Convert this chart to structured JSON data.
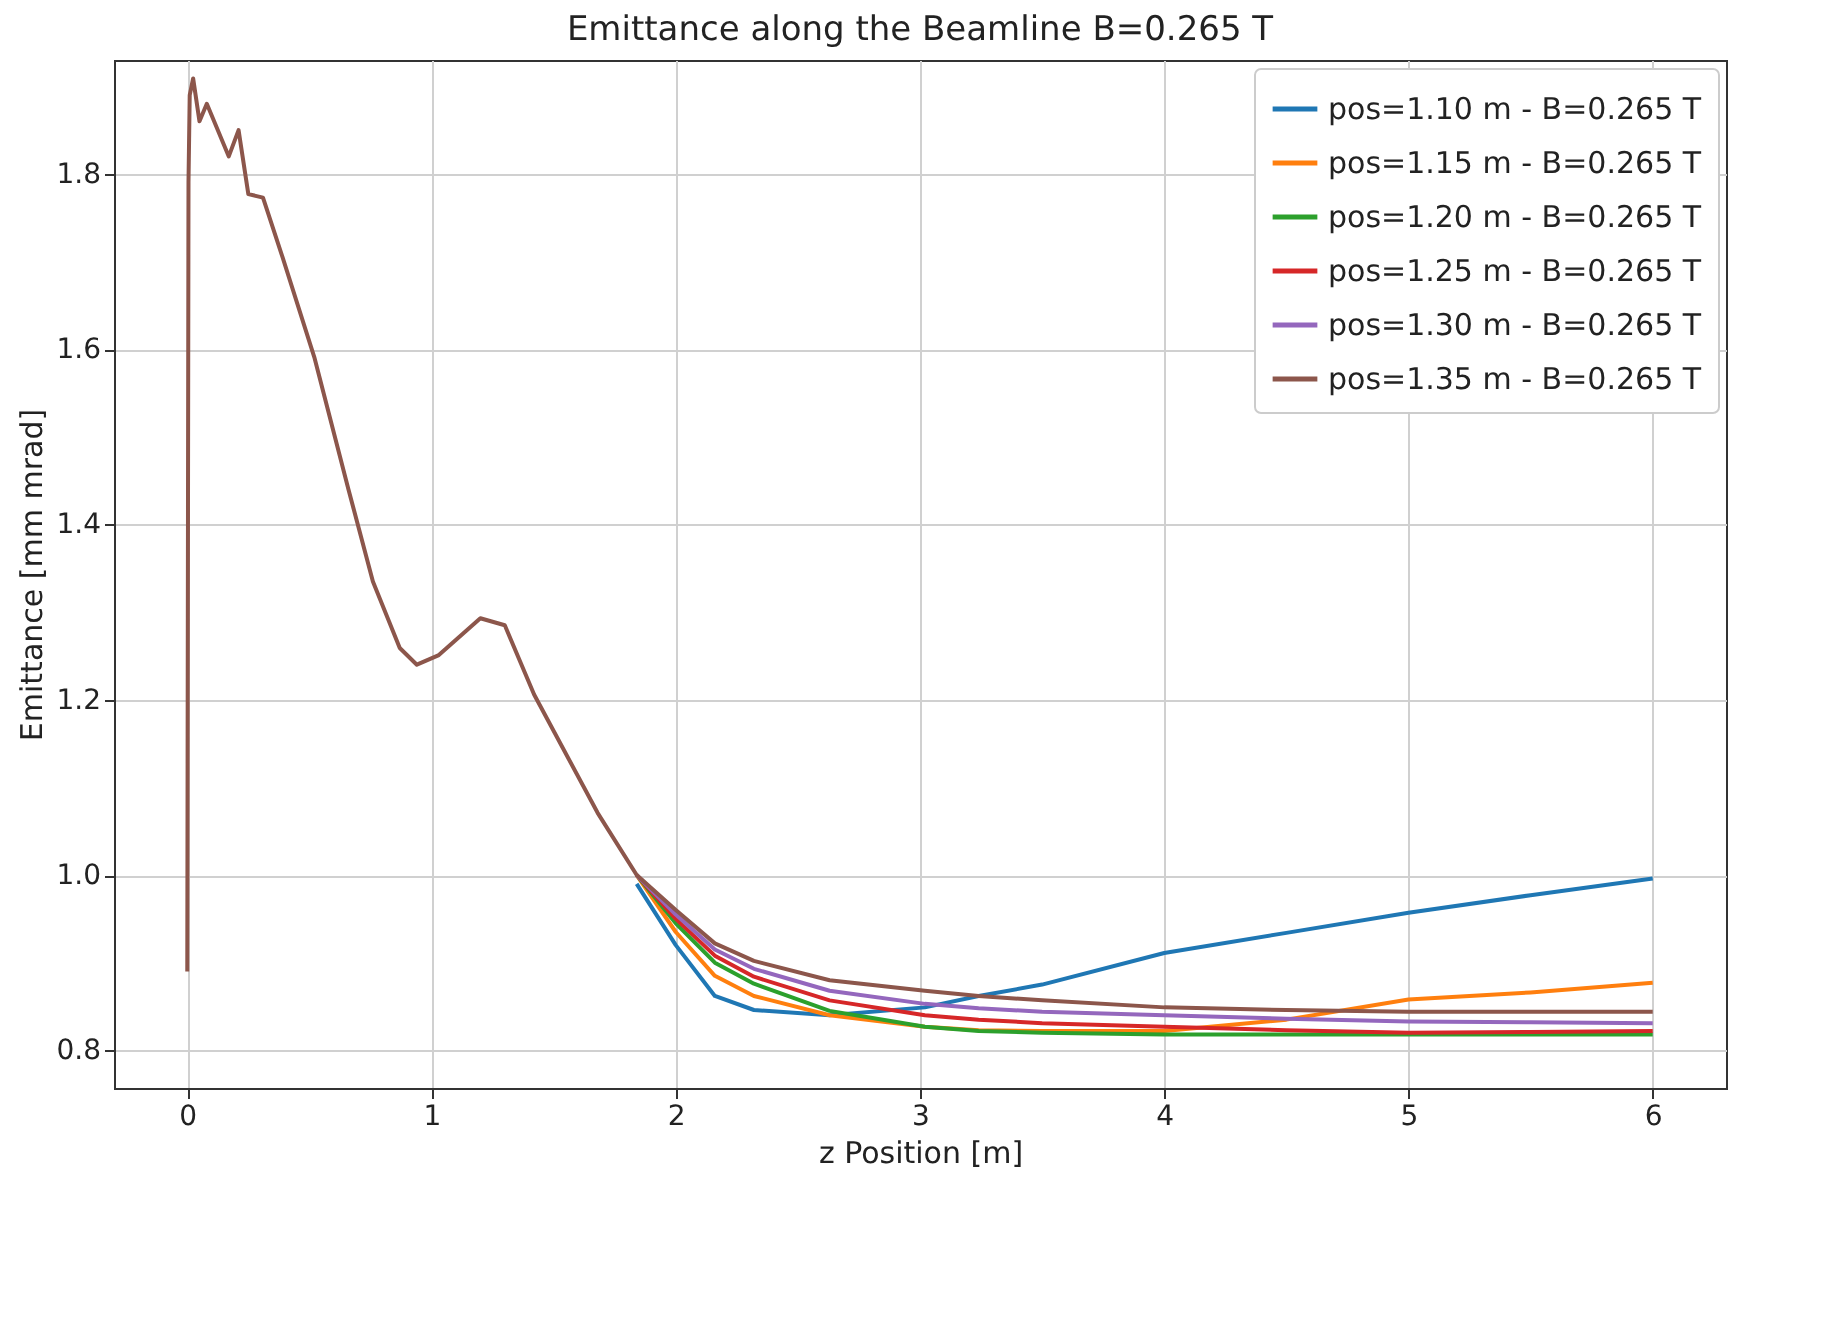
{
  "chart_data": {
    "type": "line",
    "title": "Emittance along the Beamline B=0.265 T",
    "xlabel": "z Position [m]",
    "ylabel": "Emittance [mm mrad]",
    "x": [
      0,
      0.005,
      0.01,
      0.024,
      0.05,
      0.08,
      0.17,
      0.21,
      0.25,
      0.31,
      0.39,
      0.52,
      0.66,
      0.76,
      0.87,
      0.94,
      1.03,
      1.2,
      1.3,
      1.42,
      1.68,
      1.84,
      2.0,
      2.16,
      2.32,
      2.63,
      3.02,
      3.24,
      3.5,
      4.0,
      4.5,
      5.0,
      5.5,
      6.0
    ],
    "series": [
      {
        "name": "pos=1.10 m - B=0.265 T",
        "color": "#1f77b4",
        "values": [
          null,
          null,
          null,
          null,
          null,
          null,
          null,
          null,
          null,
          null,
          null,
          null,
          null,
          null,
          null,
          null,
          null,
          null,
          null,
          null,
          null,
          0.99,
          0.92,
          0.862,
          0.846,
          0.84,
          0.849,
          0.862,
          0.875,
          0.911,
          0.934,
          0.957,
          0.977,
          0.996
        ]
      },
      {
        "name": "pos=1.15 m - B=0.265 T",
        "color": "#ff7f0e",
        "values": [
          null,
          null,
          null,
          null,
          null,
          null,
          null,
          null,
          null,
          null,
          null,
          null,
          null,
          null,
          null,
          null,
          null,
          null,
          null,
          null,
          null,
          1.0,
          0.935,
          0.885,
          0.862,
          0.84,
          0.827,
          0.823,
          0.822,
          0.822,
          0.835,
          0.858,
          0.866,
          0.877
        ]
      },
      {
        "name": "pos=1.20 m - B=0.265 T",
        "color": "#2ca02c",
        "values": [
          null,
          null,
          null,
          null,
          null,
          null,
          null,
          null,
          null,
          null,
          null,
          null,
          null,
          null,
          null,
          null,
          null,
          null,
          null,
          null,
          null,
          1.0,
          0.945,
          0.9,
          0.876,
          0.845,
          0.827,
          0.822,
          0.82,
          0.818,
          0.818,
          0.818,
          0.818,
          0.818
        ]
      },
      {
        "name": "pos=1.25 m - B=0.265 T",
        "color": "#d62728",
        "values": [
          null,
          null,
          null,
          null,
          null,
          null,
          null,
          null,
          null,
          null,
          null,
          null,
          null,
          null,
          null,
          null,
          null,
          null,
          null,
          null,
          null,
          1.0,
          0.95,
          0.908,
          0.884,
          0.857,
          0.84,
          0.835,
          0.831,
          0.827,
          0.823,
          0.82,
          0.821,
          0.822
        ]
      },
      {
        "name": "pos=1.30 m - B=0.265 T",
        "color": "#9467bd",
        "values": [
          null,
          null,
          null,
          null,
          null,
          null,
          null,
          null,
          null,
          null,
          null,
          null,
          null,
          null,
          null,
          null,
          null,
          null,
          null,
          null,
          null,
          1.0,
          0.955,
          0.915,
          0.893,
          0.868,
          0.853,
          0.848,
          0.844,
          0.84,
          0.836,
          0.833,
          0.832,
          0.831
        ]
      },
      {
        "name": "pos=1.35 m - B=0.265 T",
        "color": "#8c564b",
        "values": [
          0.89,
          1.79,
          1.89,
          1.909,
          1.86,
          1.88,
          1.82,
          1.85,
          1.777,
          1.773,
          1.705,
          1.591,
          1.44,
          1.335,
          1.259,
          1.24,
          1.251,
          1.293,
          1.285,
          1.206,
          1.071,
          1.0,
          0.96,
          0.922,
          0.902,
          0.88,
          0.868,
          0.862,
          0.857,
          0.849,
          0.846,
          0.844,
          0.844,
          0.844
        ]
      }
    ],
    "xlim": [
      -0.3,
      6.3
    ],
    "ylim": [
      0.757,
      1.93
    ],
    "xticks": [
      0,
      1,
      2,
      3,
      4,
      5,
      6
    ],
    "yticks": [
      {
        "value": 0.8,
        "label": "0.8"
      },
      {
        "value": 1.0,
        "label": "1.0"
      },
      {
        "value": 1.2,
        "label": "1.2"
      },
      {
        "value": 1.4,
        "label": "1.4"
      },
      {
        "value": 1.6,
        "label": "1.6"
      },
      {
        "value": 1.8,
        "label": "1.8"
      }
    ],
    "grid": true,
    "legend": "top right"
  }
}
